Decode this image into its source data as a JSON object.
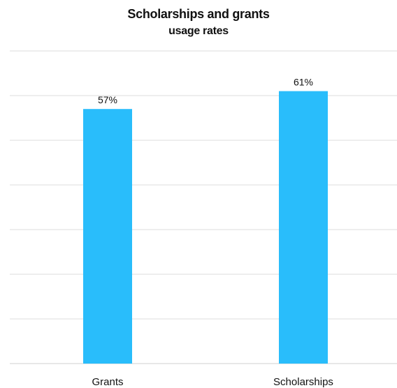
{
  "chart_data": {
    "type": "bar",
    "title": "Scholarships and grants",
    "subtitle": "usage rates",
    "categories": [
      "Grants",
      "Scholarships"
    ],
    "values": [
      57,
      61
    ],
    "data_labels": [
      "57%",
      "61%"
    ],
    "xlabel": "",
    "ylabel": "",
    "ylim": [
      0,
      70
    ],
    "grid": true,
    "legend": "none",
    "bar_color": "#29bdfb"
  }
}
